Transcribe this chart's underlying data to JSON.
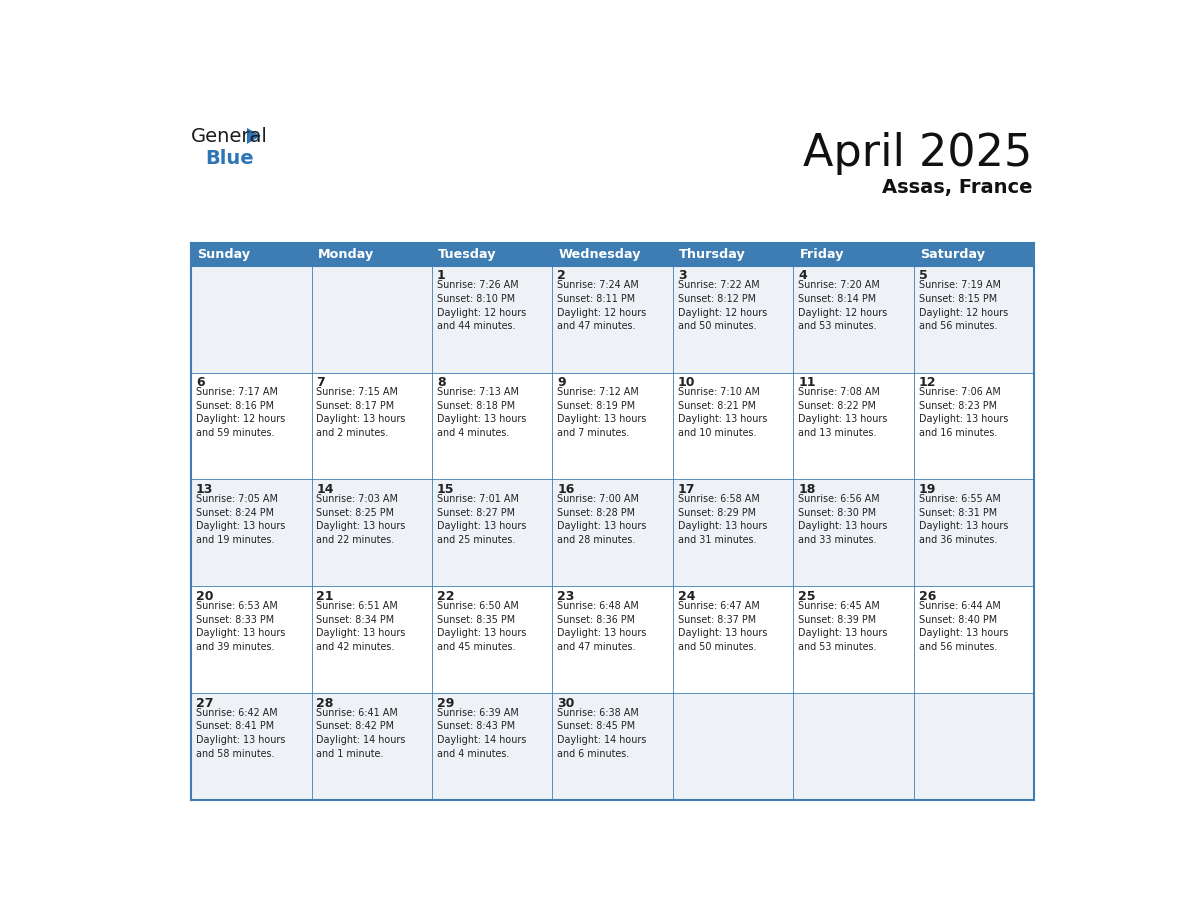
{
  "title": "April 2025",
  "subtitle": "Assas, France",
  "header_bg_color": "#3d7db3",
  "header_text_color": "#ffffff",
  "cell_bg_even": "#eef2f7",
  "cell_bg_odd": "#ffffff",
  "border_color": "#3d7db3",
  "text_color": "#222222",
  "day_names": [
    "Sunday",
    "Monday",
    "Tuesday",
    "Wednesday",
    "Thursday",
    "Friday",
    "Saturday"
  ],
  "weeks": [
    [
      {
        "day": "",
        "info": ""
      },
      {
        "day": "",
        "info": ""
      },
      {
        "day": "1",
        "info": "Sunrise: 7:26 AM\nSunset: 8:10 PM\nDaylight: 12 hours\nand 44 minutes."
      },
      {
        "day": "2",
        "info": "Sunrise: 7:24 AM\nSunset: 8:11 PM\nDaylight: 12 hours\nand 47 minutes."
      },
      {
        "day": "3",
        "info": "Sunrise: 7:22 AM\nSunset: 8:12 PM\nDaylight: 12 hours\nand 50 minutes."
      },
      {
        "day": "4",
        "info": "Sunrise: 7:20 AM\nSunset: 8:14 PM\nDaylight: 12 hours\nand 53 minutes."
      },
      {
        "day": "5",
        "info": "Sunrise: 7:19 AM\nSunset: 8:15 PM\nDaylight: 12 hours\nand 56 minutes."
      }
    ],
    [
      {
        "day": "6",
        "info": "Sunrise: 7:17 AM\nSunset: 8:16 PM\nDaylight: 12 hours\nand 59 minutes."
      },
      {
        "day": "7",
        "info": "Sunrise: 7:15 AM\nSunset: 8:17 PM\nDaylight: 13 hours\nand 2 minutes."
      },
      {
        "day": "8",
        "info": "Sunrise: 7:13 AM\nSunset: 8:18 PM\nDaylight: 13 hours\nand 4 minutes."
      },
      {
        "day": "9",
        "info": "Sunrise: 7:12 AM\nSunset: 8:19 PM\nDaylight: 13 hours\nand 7 minutes."
      },
      {
        "day": "10",
        "info": "Sunrise: 7:10 AM\nSunset: 8:21 PM\nDaylight: 13 hours\nand 10 minutes."
      },
      {
        "day": "11",
        "info": "Sunrise: 7:08 AM\nSunset: 8:22 PM\nDaylight: 13 hours\nand 13 minutes."
      },
      {
        "day": "12",
        "info": "Sunrise: 7:06 AM\nSunset: 8:23 PM\nDaylight: 13 hours\nand 16 minutes."
      }
    ],
    [
      {
        "day": "13",
        "info": "Sunrise: 7:05 AM\nSunset: 8:24 PM\nDaylight: 13 hours\nand 19 minutes."
      },
      {
        "day": "14",
        "info": "Sunrise: 7:03 AM\nSunset: 8:25 PM\nDaylight: 13 hours\nand 22 minutes."
      },
      {
        "day": "15",
        "info": "Sunrise: 7:01 AM\nSunset: 8:27 PM\nDaylight: 13 hours\nand 25 minutes."
      },
      {
        "day": "16",
        "info": "Sunrise: 7:00 AM\nSunset: 8:28 PM\nDaylight: 13 hours\nand 28 minutes."
      },
      {
        "day": "17",
        "info": "Sunrise: 6:58 AM\nSunset: 8:29 PM\nDaylight: 13 hours\nand 31 minutes."
      },
      {
        "day": "18",
        "info": "Sunrise: 6:56 AM\nSunset: 8:30 PM\nDaylight: 13 hours\nand 33 minutes."
      },
      {
        "day": "19",
        "info": "Sunrise: 6:55 AM\nSunset: 8:31 PM\nDaylight: 13 hours\nand 36 minutes."
      }
    ],
    [
      {
        "day": "20",
        "info": "Sunrise: 6:53 AM\nSunset: 8:33 PM\nDaylight: 13 hours\nand 39 minutes."
      },
      {
        "day": "21",
        "info": "Sunrise: 6:51 AM\nSunset: 8:34 PM\nDaylight: 13 hours\nand 42 minutes."
      },
      {
        "day": "22",
        "info": "Sunrise: 6:50 AM\nSunset: 8:35 PM\nDaylight: 13 hours\nand 45 minutes."
      },
      {
        "day": "23",
        "info": "Sunrise: 6:48 AM\nSunset: 8:36 PM\nDaylight: 13 hours\nand 47 minutes."
      },
      {
        "day": "24",
        "info": "Sunrise: 6:47 AM\nSunset: 8:37 PM\nDaylight: 13 hours\nand 50 minutes."
      },
      {
        "day": "25",
        "info": "Sunrise: 6:45 AM\nSunset: 8:39 PM\nDaylight: 13 hours\nand 53 minutes."
      },
      {
        "day": "26",
        "info": "Sunrise: 6:44 AM\nSunset: 8:40 PM\nDaylight: 13 hours\nand 56 minutes."
      }
    ],
    [
      {
        "day": "27",
        "info": "Sunrise: 6:42 AM\nSunset: 8:41 PM\nDaylight: 13 hours\nand 58 minutes."
      },
      {
        "day": "28",
        "info": "Sunrise: 6:41 AM\nSunset: 8:42 PM\nDaylight: 14 hours\nand 1 minute."
      },
      {
        "day": "29",
        "info": "Sunrise: 6:39 AM\nSunset: 8:43 PM\nDaylight: 14 hours\nand 4 minutes."
      },
      {
        "day": "30",
        "info": "Sunrise: 6:38 AM\nSunset: 8:45 PM\nDaylight: 14 hours\nand 6 minutes."
      },
      {
        "day": "",
        "info": ""
      },
      {
        "day": "",
        "info": ""
      },
      {
        "day": "",
        "info": ""
      }
    ]
  ]
}
